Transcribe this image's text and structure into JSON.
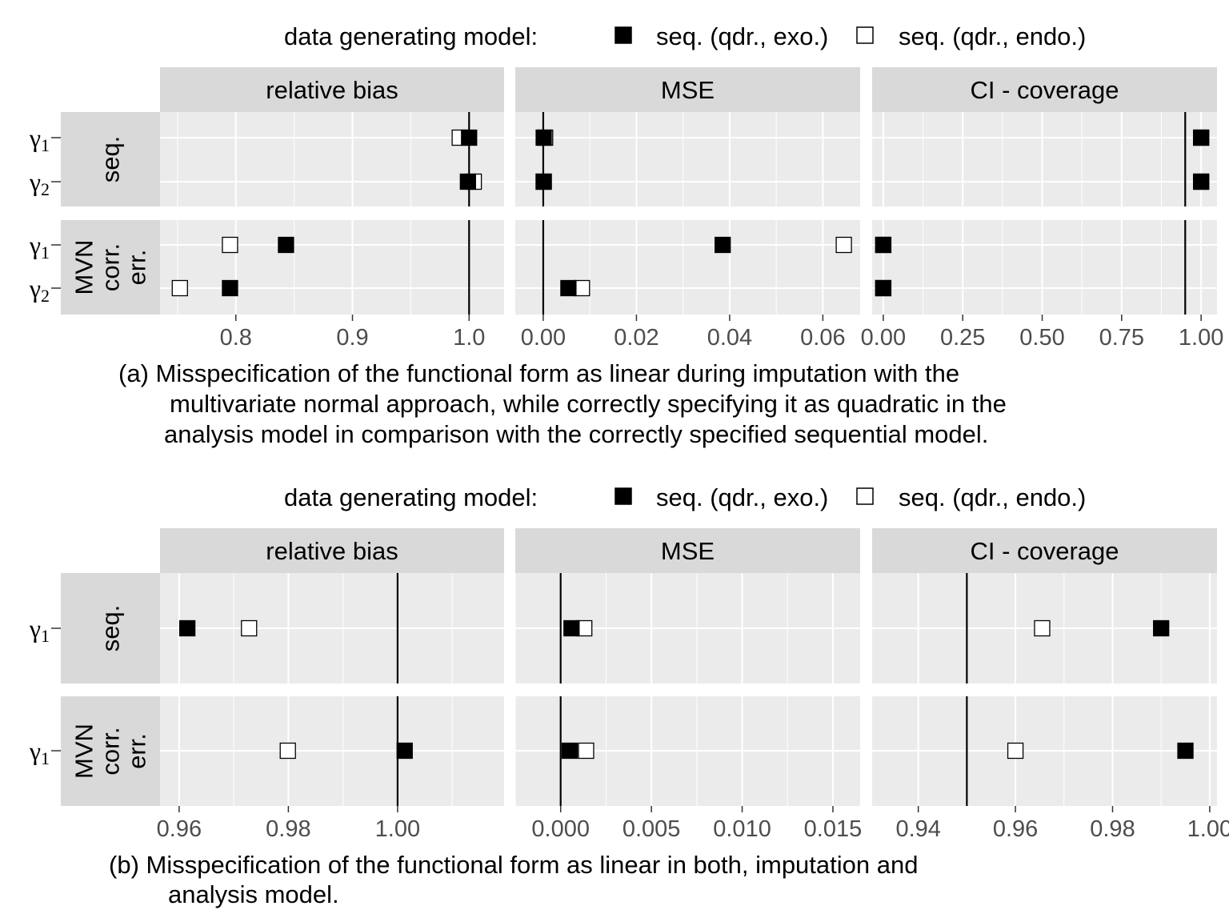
{
  "chart_data": [
    {
      "type": "scatter",
      "legend_title": "data generating model:",
      "legend_position": "top",
      "legend": [
        {
          "label": "seq. (qdr., exo.)",
          "marker": "filled-square",
          "color": "#000000"
        },
        {
          "label": "seq. (qdr., endo.)",
          "marker": "open-square",
          "color": "#ffffff"
        }
      ],
      "facet_columns": [
        {
          "label": "relative bias",
          "xlim": [
            0.735,
            1.03
          ],
          "ticks": [
            0.8,
            0.9,
            1.0
          ],
          "tick_labels": [
            "0.8",
            "0.9",
            "1.0"
          ],
          "reference_line": 1.0
        },
        {
          "label": "MSE",
          "xlim": [
            -0.006,
            0.068
          ],
          "ticks": [
            0.0,
            0.02,
            0.04,
            0.06
          ],
          "tick_labels": [
            "0.00",
            "0.02",
            "0.04",
            "0.06"
          ],
          "reference_line": 0.0
        },
        {
          "label": "CI - coverage",
          "xlim": [
            -0.035,
            1.05
          ],
          "ticks": [
            0.0,
            0.25,
            0.5,
            0.75,
            1.0
          ],
          "tick_labels": [
            "0.00",
            "0.25",
            "0.50",
            "0.75",
            "1.00"
          ],
          "reference_line": 0.95
        }
      ],
      "facet_rows": [
        {
          "label_lines": [
            "seq."
          ],
          "y_categories": [
            "γ1",
            "γ2"
          ]
        },
        {
          "label_lines": [
            "MVN",
            "corr.",
            "err."
          ],
          "y_categories": [
            "γ1",
            "γ2"
          ]
        }
      ],
      "points": {
        "relative bias": {
          "seq.": {
            "γ1": {
              "seq. (qdr., exo.)": 1.0,
              "seq. (qdr., endo.)": 0.992
            },
            "γ2": {
              "seq. (qdr., exo.)": 0.999,
              "seq. (qdr., endo.)": 1.004
            }
          },
          "MVN corr. err.": {
            "γ1": {
              "seq. (qdr., exo.)": 0.843,
              "seq. (qdr., endo.)": 0.795
            },
            "γ2": {
              "seq. (qdr., exo.)": 0.795,
              "seq. (qdr., endo.)": 0.752
            }
          }
        },
        "MSE": {
          "seq.": {
            "γ1": {
              "seq. (qdr., exo.)": 0.0001,
              "seq. (qdr., endo.)": 0.0004
            },
            "γ2": {
              "seq. (qdr., exo.)": 0.0001,
              "seq. (qdr., endo.)": 0.0001
            }
          },
          "MVN corr. err.": {
            "γ1": {
              "seq. (qdr., exo.)": 0.0385,
              "seq. (qdr., endo.)": 0.0645
            },
            "γ2": {
              "seq. (qdr., exo.)": 0.0054,
              "seq. (qdr., endo.)": 0.0083
            }
          }
        },
        "CI - coverage": {
          "seq.": {
            "γ1": {
              "seq. (qdr., exo.)": 1.0,
              "seq. (qdr., endo.)": 1.0
            },
            "γ2": {
              "seq. (qdr., exo.)": 1.0,
              "seq. (qdr., endo.)": 1.0
            }
          },
          "MVN corr. err.": {
            "γ1": {
              "seq. (qdr., exo.)": 0.0,
              "seq. (qdr., endo.)": 0.0
            },
            "γ2": {
              "seq. (qdr., exo.)": 0.0,
              "seq. (qdr., endo.)": 0.0
            }
          }
        }
      },
      "grid": true,
      "caption_lines": [
        "(a) Misspecification of the functional form as linear during imputation with the",
        "multivariate normal approach, while correctly specifying it as quadratic in the",
        "analysis model in comparison with the correctly specified sequential model."
      ]
    },
    {
      "type": "scatter",
      "legend_title": "data generating model:",
      "legend_position": "top",
      "legend": [
        {
          "label": "seq. (qdr., exo.)",
          "marker": "filled-square",
          "color": "#000000"
        },
        {
          "label": "seq. (qdr., endo.)",
          "marker": "open-square",
          "color": "#ffffff"
        }
      ],
      "facet_columns": [
        {
          "label": "relative bias",
          "xlim": [
            0.9565,
            1.0195
          ],
          "ticks": [
            0.96,
            0.98,
            1.0
          ],
          "tick_labels": [
            "0.96",
            "0.98",
            "1.00"
          ],
          "reference_line": 1.0
        },
        {
          "label": "MSE",
          "xlim": [
            -0.0025,
            0.0165
          ],
          "ticks": [
            0.0,
            0.005,
            0.01,
            0.015
          ],
          "tick_labels": [
            "0.000",
            "0.005",
            "0.010",
            "0.015"
          ],
          "reference_line": 0.0
        },
        {
          "label": "CI - coverage",
          "xlim": [
            0.9305,
            1.0015
          ],
          "ticks": [
            0.94,
            0.96,
            0.98,
            1.0
          ],
          "tick_labels": [
            "0.94",
            "0.96",
            "0.98",
            "1.00"
          ],
          "reference_line": 0.95
        }
      ],
      "facet_rows": [
        {
          "label_lines": [
            "seq."
          ],
          "y_categories": [
            "γ1"
          ]
        },
        {
          "label_lines": [
            "MVN",
            "corr.",
            "err."
          ],
          "y_categories": [
            "γ1"
          ]
        }
      ],
      "points": {
        "relative bias": {
          "seq.": {
            "γ1": {
              "seq. (qdr., exo.)": 0.9615,
              "seq. (qdr., endo.)": 0.9728
            }
          },
          "MVN corr. err.": {
            "γ1": {
              "seq. (qdr., exo.)": 1.0013,
              "seq. (qdr., endo.)": 0.9799
            }
          }
        },
        "MSE": {
          "seq.": {
            "γ1": {
              "seq. (qdr., exo.)": 0.0006,
              "seq. (qdr., endo.)": 0.0013
            }
          },
          "MVN corr. err.": {
            "γ1": {
              "seq. (qdr., exo.)": 0.0005,
              "seq. (qdr., endo.)": 0.0014
            }
          }
        },
        "CI - coverage": {
          "seq.": {
            "γ1": {
              "seq. (qdr., exo.)": 0.99,
              "seq. (qdr., endo.)": 0.9655
            }
          },
          "MVN corr. err.": {
            "γ1": {
              "seq. (qdr., exo.)": 0.995,
              "seq. (qdr., endo.)": 0.96
            }
          }
        }
      },
      "grid": true,
      "caption_lines": [
        "(b) Misspecification of the functional form as linear in both, imputation and",
        "analysis model."
      ]
    }
  ]
}
